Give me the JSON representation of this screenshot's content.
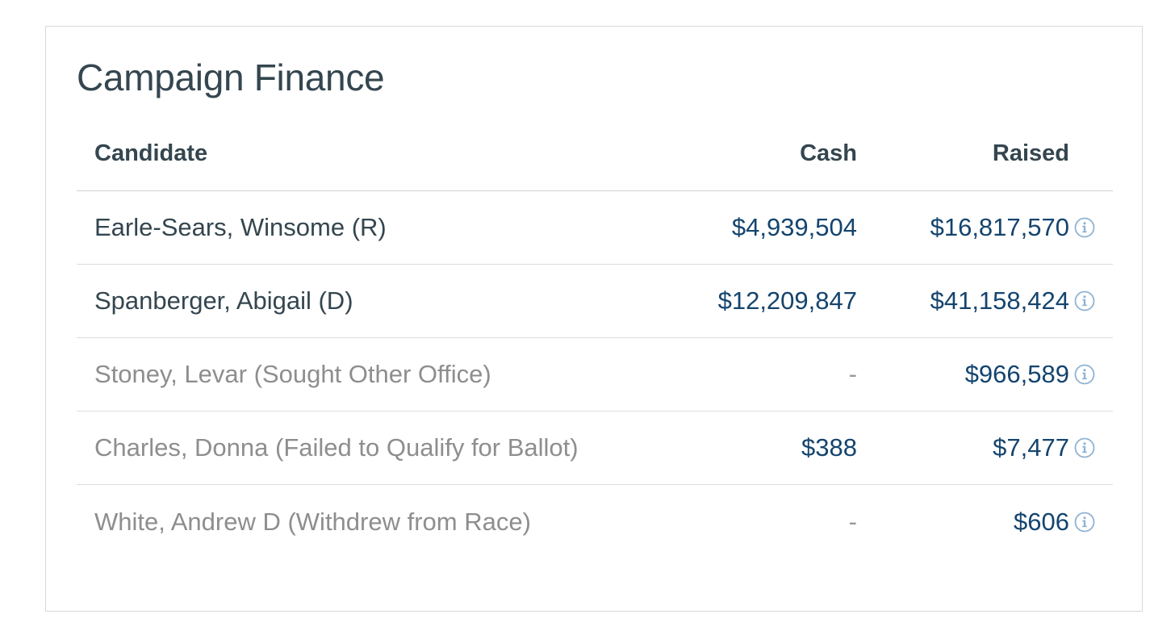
{
  "panel": {
    "title": "Campaign Finance"
  },
  "table": {
    "columns": [
      "Candidate",
      "Cash",
      "Raised"
    ],
    "rows": [
      {
        "candidate": "Earle-Sears, Winsome (R)",
        "cash": "$4,939,504",
        "raised": "$16,817,570",
        "status": "active"
      },
      {
        "candidate": "Spanberger, Abigail (D)",
        "cash": "$12,209,847",
        "raised": "$41,158,424",
        "status": "active"
      },
      {
        "candidate": "Stoney, Levar (Sought Other Office)",
        "cash": "-",
        "raised": "$966,589",
        "status": "inactive"
      },
      {
        "candidate": "Charles, Donna (Failed to Qualify for Ballot)",
        "cash": "$388",
        "raised": "$7,477",
        "status": "inactive"
      },
      {
        "candidate": "White, Andrew D (Withdrew from Race)",
        "cash": "-",
        "raised": "$606",
        "status": "inactive"
      }
    ]
  },
  "colors": {
    "title_text": "#34464f",
    "money_text": "#14446e",
    "inactive_text": "#8e8e8e",
    "info_icon": "#8fb3d3"
  },
  "icons": {
    "raised_info": "info-circle-icon"
  }
}
